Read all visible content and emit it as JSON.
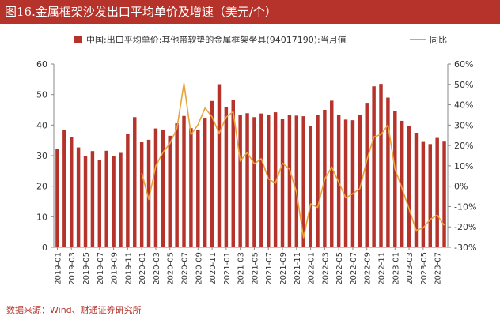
{
  "title": "图16.金属框架沙发出口平均单价及增速（美元/个）",
  "source": "数据来源：Wind、财通证券研究所",
  "colors": {
    "accent": "#b5332b",
    "bar": "#b5332b",
    "line": "#e8a33a",
    "axis": "#888888",
    "text": "#333333"
  },
  "chart_data": {
    "type": "bar+line",
    "categories": [
      "2019-01",
      "2019-02",
      "2019-03",
      "2019-04",
      "2019-05",
      "2019-06",
      "2019-07",
      "2019-08",
      "2019-09",
      "2019-10",
      "2019-11",
      "2019-12",
      "2020-01",
      "2020-02",
      "2020-03",
      "2020-04",
      "2020-05",
      "2020-06",
      "2020-07",
      "2020-08",
      "2020-09",
      "2020-10",
      "2020-11",
      "2020-12",
      "2021-01",
      "2021-02",
      "2021-03",
      "2021-04",
      "2021-05",
      "2021-06",
      "2021-07",
      "2021-08",
      "2021-09",
      "2021-10",
      "2021-11",
      "2021-12",
      "2022-01",
      "2022-02",
      "2022-03",
      "2022-04",
      "2022-05",
      "2022-06",
      "2022-07",
      "2022-08",
      "2022-09",
      "2022-10",
      "2022-11",
      "2022-12",
      "2023-01",
      "2023-02",
      "2023-03",
      "2023-04",
      "2023-05",
      "2023-06",
      "2023-07",
      "2023-08"
    ],
    "xtick_labels": [
      "2019-01",
      "2019-03",
      "2019-05",
      "2019-07",
      "2019-09",
      "2019-11",
      "2020-01",
      "2020-03",
      "2020-05",
      "2020-07",
      "2020-09",
      "2020-11",
      "2021-01",
      "2021-03",
      "2021-05",
      "2021-07",
      "2021-09",
      "2021-11",
      "2022-01",
      "2022-03",
      "2022-05",
      "2022-07",
      "2022-09",
      "2022-11",
      "2023-01",
      "2023-03",
      "2023-05",
      "2023-07"
    ],
    "series": [
      {
        "name": "中国:出口平均单价:其他带软垫的金属框架坐具(94017190):当月值",
        "type": "bar",
        "axis": "left",
        "values": [
          32.3,
          38.5,
          36.2,
          32.7,
          30.0,
          31.5,
          28.5,
          31.6,
          29.8,
          30.9,
          37.0,
          42.6,
          34.4,
          35.2,
          38.9,
          38.5,
          36.5,
          40.6,
          43.0,
          39.0,
          38.5,
          42.4,
          47.9,
          53.4,
          46.0,
          48.3,
          43.3,
          43.9,
          42.6,
          43.8,
          43.2,
          44.2,
          41.9,
          43.4,
          43.1,
          42.9,
          39.8,
          43.3,
          45.0,
          48.0,
          43.4,
          41.8,
          41.6,
          43.3,
          47.3,
          52.7,
          53.5,
          49.0,
          44.7,
          41.4,
          39.7,
          37.5,
          34.5,
          33.8,
          35.8,
          34.6
        ]
      },
      {
        "name": "同比",
        "type": "line",
        "axis": "right",
        "values": [
          null,
          null,
          null,
          null,
          null,
          null,
          null,
          null,
          null,
          null,
          null,
          null,
          6.5,
          -6.5,
          10.0,
          16.5,
          21.0,
          28.3,
          50.5,
          25.3,
          30.2,
          38.4,
          34.0,
          26.0,
          33.9,
          36.6,
          12.4,
          16.5,
          11.0,
          13.5,
          3.6,
          1.5,
          11.3,
          8.4,
          -3.0,
          -25.3,
          -8.7,
          -10.4,
          3.5,
          9.4,
          1.9,
          -5.7,
          -3.7,
          -1.2,
          12.9,
          24.2,
          25.4,
          30.0,
          8.4,
          -1.1,
          -11.2,
          -21.7,
          -20.5,
          -16.3,
          -14.2,
          -19.2
        ]
      }
    ],
    "yleft": {
      "min": 0,
      "max": 60,
      "ticks": [
        0,
        10,
        20,
        30,
        40,
        50,
        60
      ]
    },
    "yright": {
      "min": -30,
      "max": 60,
      "ticks": [
        -30,
        -20,
        -10,
        0,
        10,
        20,
        30,
        40,
        50,
        60
      ],
      "labels": [
        "-30%",
        "-20%",
        "-10%",
        "0%",
        "10%",
        "20%",
        "30%",
        "40%",
        "50%",
        "60%"
      ]
    },
    "legend": {
      "bar_label": "中国:出口平均单价:其他带软垫的金属框架坐具(94017190):当月值",
      "line_label": "同比",
      "placement": "top"
    }
  }
}
